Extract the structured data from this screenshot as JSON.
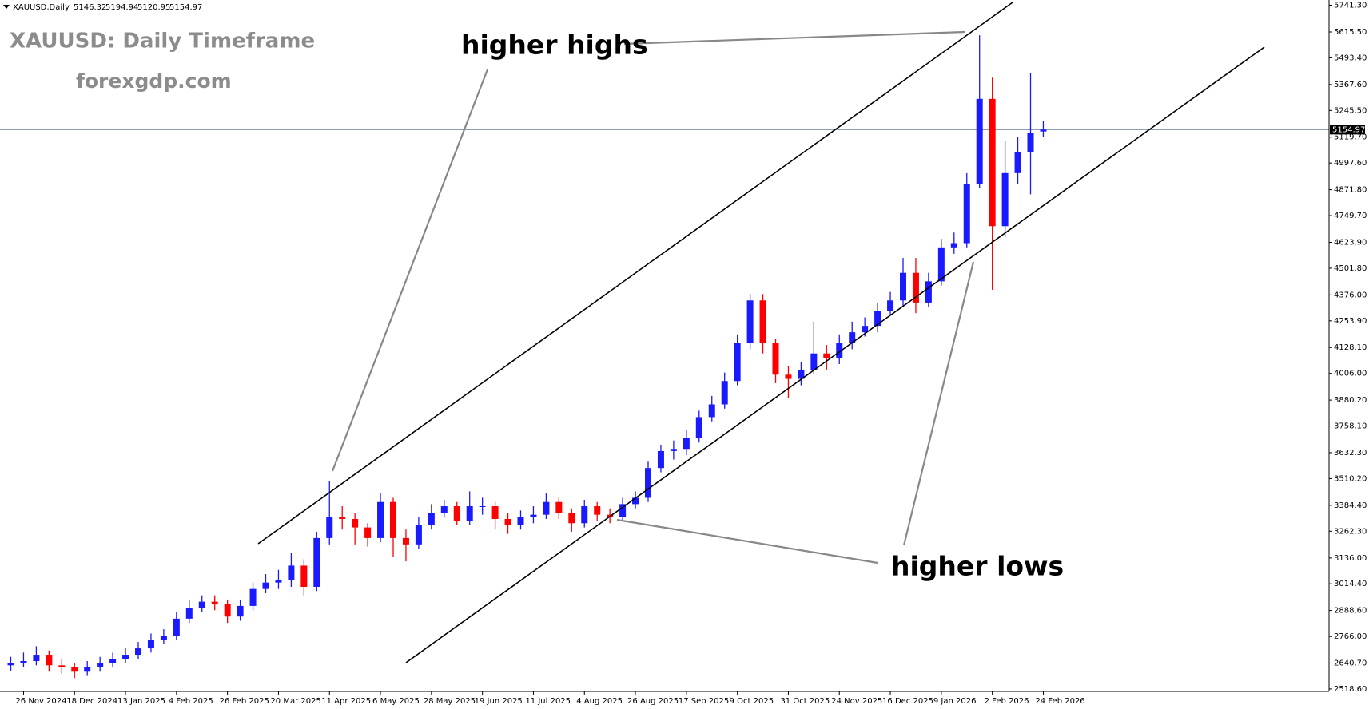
{
  "chart_data": {
    "type": "candlestick",
    "title": "XAUUSD: Daily Timeframe",
    "subtitle": "forexgdp.com",
    "symbol": "XAUUSD,Daily",
    "annotations": [
      "higher highs",
      "higher lows"
    ],
    "up_color": "#1a1aff",
    "down_color": "#ff0000",
    "categories": [
      null,
      "26 Nov 2024",
      null,
      null,
      null,
      "18 Dec 2024",
      null,
      null,
      null,
      "13 Jan 2025",
      null,
      null,
      null,
      "4 Feb 2025",
      null,
      null,
      null,
      "26 Feb 2025",
      null,
      null,
      null,
      "20 Mar 2025",
      null,
      null,
      null,
      "11 Apr 2025",
      null,
      null,
      null,
      "6 May 2025",
      null,
      null,
      null,
      "28 May 2025",
      null,
      null,
      null,
      "19 Jun 2025",
      null,
      null,
      null,
      "11 Jul 2025",
      null,
      null,
      null,
      "4 Aug 2025",
      null,
      null,
      null,
      "26 Aug 2025",
      null,
      null,
      null,
      "17 Sep 2025",
      null,
      null,
      null,
      "9 Oct 2025",
      null,
      null,
      null,
      "31 Oct 2025",
      null,
      null,
      null,
      "24 Nov 2025",
      null,
      null,
      null,
      "16 Dec 2025",
      null,
      null,
      null,
      "9 Jan 2026",
      null,
      null,
      null,
      "2 Feb 2026",
      null,
      null,
      null,
      "24 Feb 2026"
    ],
    "open": [
      2630,
      2640,
      2650,
      2680,
      2630,
      2620,
      2600,
      2620,
      2640,
      2660,
      2680,
      2710,
      2750,
      2770,
      2850,
      2900,
      2930,
      2920,
      2860,
      2910,
      2990,
      3020,
      3030,
      3100,
      3000,
      3230,
      3330,
      3320,
      3280,
      3230,
      3400,
      3230,
      3200,
      3290,
      3350,
      3380,
      3310,
      3380,
      3380,
      3320,
      3290,
      3330,
      3340,
      3400,
      3350,
      3300,
      3380,
      3340,
      3330,
      3390,
      3420,
      3560,
      3640,
      3650,
      3700,
      3800,
      3860,
      3970,
      4150,
      4350,
      4150,
      4000,
      3980,
      4020,
      4100,
      4080,
      4150,
      4200,
      4230,
      4300,
      4350,
      4480,
      4340,
      4440,
      4600,
      4620,
      4900,
      5300,
      4700,
      4950,
      5050,
      5146.32
    ],
    "high": [
      2670,
      2690,
      2720,
      2700,
      2660,
      2640,
      2650,
      2670,
      2690,
      2710,
      2740,
      2780,
      2800,
      2880,
      2940,
      2960,
      2960,
      2940,
      2940,
      3020,
      3060,
      3080,
      3160,
      3130,
      3260,
      3500,
      3380,
      3350,
      3300,
      3440,
      3420,
      3270,
      3330,
      3390,
      3410,
      3400,
      3450,
      3420,
      3400,
      3350,
      3360,
      3380,
      3440,
      3420,
      3370,
      3410,
      3400,
      3370,
      3420,
      3450,
      3590,
      3670,
      3690,
      3740,
      3830,
      3900,
      4010,
      4190,
      4380,
      4380,
      4170,
      4040,
      4060,
      4250,
      4140,
      4190,
      4250,
      4270,
      4340,
      4390,
      4550,
      4550,
      4480,
      4640,
      4670,
      4950,
      5600,
      5400,
      5100,
      5120,
      5420,
      5194.94
    ],
    "low": [
      2605,
      2620,
      2630,
      2600,
      2590,
      2570,
      2580,
      2600,
      2620,
      2640,
      2660,
      2690,
      2730,
      2750,
      2830,
      2880,
      2890,
      2830,
      2840,
      2890,
      2970,
      2990,
      3000,
      2960,
      2980,
      3200,
      3270,
      3200,
      3190,
      3210,
      3140,
      3120,
      3180,
      3270,
      3330,
      3290,
      3290,
      3340,
      3270,
      3250,
      3270,
      3300,
      3320,
      3320,
      3260,
      3280,
      3310,
      3300,
      3310,
      3370,
      3400,
      3540,
      3600,
      3620,
      3680,
      3780,
      3840,
      3950,
      4120,
      4100,
      3960,
      3890,
      3950,
      4000,
      4020,
      4050,
      4120,
      4180,
      4200,
      4280,
      4320,
      4290,
      4320,
      4420,
      4570,
      4600,
      4880,
      4400,
      4650,
      4900,
      4850,
      5120.95
    ],
    "close": [
      2640,
      2650,
      2680,
      2630,
      2620,
      2600,
      2620,
      2640,
      2660,
      2680,
      2710,
      2750,
      2770,
      2850,
      2900,
      2930,
      2920,
      2860,
      2910,
      2990,
      3020,
      3030,
      3100,
      3000,
      3230,
      3330,
      3320,
      3280,
      3230,
      3400,
      3230,
      3200,
      3290,
      3350,
      3380,
      3310,
      3380,
      3380,
      3320,
      3290,
      3330,
      3340,
      3400,
      3350,
      3300,
      3380,
      3340,
      3330,
      3390,
      3420,
      3560,
      3640,
      3650,
      3700,
      3800,
      3860,
      3970,
      4150,
      4350,
      4150,
      4000,
      3980,
      4020,
      4100,
      4080,
      4150,
      4200,
      4230,
      4300,
      4350,
      4480,
      4340,
      4440,
      4600,
      4620,
      4900,
      5300,
      4700,
      4950,
      5050,
      5140,
      5154.97
    ],
    "ylim": [
      2507,
      5766
    ],
    "yticks": [
      {
        "value": 2518.6,
        "label": "2518.60"
      },
      {
        "value": 2640.7,
        "label": "2640.70"
      },
      {
        "value": 2766,
        "label": "2766.00"
      },
      {
        "value": 2888.6,
        "label": "2888.60"
      },
      {
        "value": 3014.4,
        "label": "3014.40"
      },
      {
        "value": 3136,
        "label": "3136.00"
      },
      {
        "value": 3262.3,
        "label": "3262.30"
      },
      {
        "value": 3384.4,
        "label": "3384.40"
      },
      {
        "value": 3510.2,
        "label": "3510.20"
      },
      {
        "value": 3632.3,
        "label": "3632.30"
      },
      {
        "value": 3758.1,
        "label": "3758.10"
      },
      {
        "value": 3880.2,
        "label": "3880.20"
      },
      {
        "value": 4006,
        "label": "4006.00"
      },
      {
        "value": 4128.1,
        "label": "4128.10"
      },
      {
        "value": 4253.9,
        "label": "4253.90"
      },
      {
        "value": 4376,
        "label": "4376.00"
      },
      {
        "value": 4501.8,
        "label": "4501.80"
      },
      {
        "value": 4623.9,
        "label": "4623.90"
      },
      {
        "value": 4749.7,
        "label": "4749.70"
      },
      {
        "value": 4871.8,
        "label": "4871.80"
      },
      {
        "value": 4997.6,
        "label": "4997.60"
      },
      {
        "value": 5119.7,
        "label": "5119.70"
      },
      {
        "value": 5245.5,
        "label": "5245.50"
      },
      {
        "value": 5367.6,
        "label": "5367.60"
      },
      {
        "value": 5493.4,
        "label": "5493.40"
      },
      {
        "value": 5615.5,
        "label": "5615.50"
      },
      {
        "value": 5741.3,
        "label": "5741.30"
      }
    ]
  }
}
